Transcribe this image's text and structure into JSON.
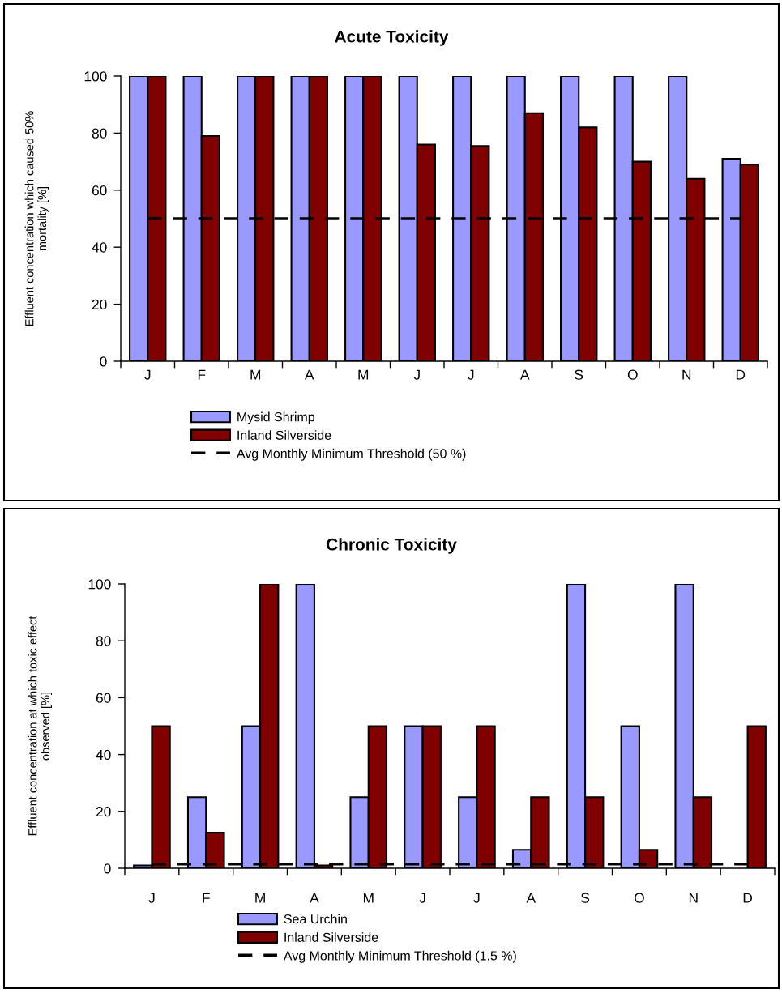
{
  "chart_data": [
    {
      "type": "bar",
      "title": "Acute Toxicity",
      "ylabel": "Effluent concentration which caused 50%\nmortality [%]",
      "categories": [
        "J",
        "F",
        "M",
        "A",
        "M",
        "J",
        "J",
        "A",
        "S",
        "O",
        "N",
        "D"
      ],
      "series": [
        {
          "name": "Mysid Shrimp",
          "color": "#9999ff",
          "values": [
            100,
            100,
            100,
            100,
            100,
            100,
            100,
            100,
            100,
            100,
            100,
            71
          ]
        },
        {
          "name": "Inland Silverside",
          "color": "#800000",
          "values": [
            100,
            79,
            100,
            100,
            100,
            76,
            75.5,
            87,
            82,
            70,
            64,
            69
          ]
        },
        {
          "name": "Avg Monthly Minimum Threshold (50 %)",
          "type": "line",
          "line_style": "dashed",
          "color": "#000000",
          "values": [
            50,
            50,
            50,
            50,
            50,
            50,
            50,
            50,
            50,
            50,
            50,
            50
          ]
        }
      ],
      "ylim": [
        0,
        100
      ],
      "yticks": [
        0,
        20,
        40,
        60,
        80,
        100
      ],
      "grid": false,
      "legend": "bottom"
    },
    {
      "type": "bar",
      "title": "Chronic Toxicity",
      "ylabel": "Effluent concentration at which toxic effect\nobserved [%]",
      "categories": [
        "J",
        "F",
        "M",
        "A",
        "M",
        "J",
        "J",
        "A",
        "S",
        "O",
        "N",
        "D"
      ],
      "series": [
        {
          "name": "Sea Urchin",
          "color": "#9999ff",
          "values": [
            1,
            25,
            50,
            100,
            25,
            50,
            25,
            6.5,
            100,
            50,
            100,
            null
          ]
        },
        {
          "name": "Inland Silverside",
          "color": "#800000",
          "values": [
            50,
            12.5,
            100,
            1,
            50,
            50,
            50,
            25,
            25,
            6.5,
            25,
            50
          ]
        },
        {
          "name": "Avg Monthly Minimum Threshold (1.5 %)",
          "type": "line",
          "line_style": "dashed",
          "color": "#000000",
          "values": [
            1.5,
            1.5,
            1.5,
            1.5,
            1.5,
            1.5,
            1.5,
            1.5,
            1.5,
            1.5,
            1.5,
            1.5
          ]
        }
      ],
      "ylim": [
        0,
        100
      ],
      "yticks": [
        0,
        20,
        40,
        60,
        80,
        100
      ],
      "grid": false,
      "legend": "bottom"
    }
  ]
}
